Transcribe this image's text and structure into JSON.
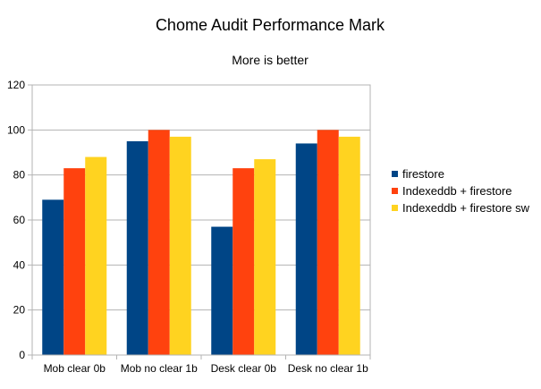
{
  "chart_data": {
    "type": "bar",
    "title": "Chome Audit Performance Mark",
    "subtitle": "More is better",
    "xlabel": "",
    "ylabel": "",
    "categories": [
      "Mob clear 0b",
      "Mob no clear 1b",
      "Desk clear 0b",
      "Desk no clear 1b"
    ],
    "series": [
      {
        "name": "firestore",
        "color": "#004586",
        "values": [
          69,
          95,
          57,
          94
        ]
      },
      {
        "name": "Indexeddb + firestore",
        "color": "#ff420e",
        "values": [
          83,
          100,
          83,
          100
        ]
      },
      {
        "name": "Indexeddb + firestore sw",
        "color": "#ffd320",
        "values": [
          88,
          97,
          87,
          97
        ]
      }
    ],
    "ylim": [
      0,
      120
    ],
    "yticks": [
      "0",
      "20",
      "40",
      "60",
      "80",
      "100",
      "120"
    ],
    "grid": true,
    "legend_position": "right"
  }
}
